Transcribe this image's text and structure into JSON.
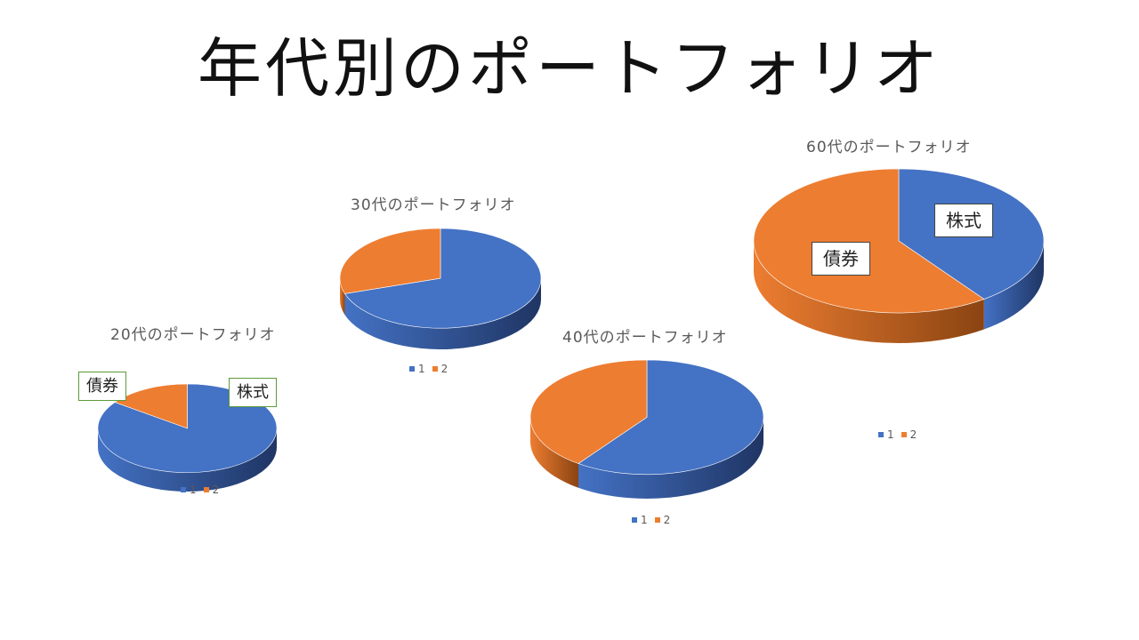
{
  "slide": {
    "title": "年代別のポートフォリオ"
  },
  "colors": {
    "series1": "#4472c4",
    "series2": "#ed7d31"
  },
  "chart_data": [
    {
      "id": "c20",
      "type": "pie",
      "title": "20代のポートフォリオ",
      "categories": [
        "1",
        "2"
      ],
      "values": [
        85,
        15
      ],
      "labels": {
        "stocks": "株式",
        "bonds": "債券"
      },
      "legend": "bottom"
    },
    {
      "id": "c30",
      "type": "pie",
      "title": "30代のポートフォリオ",
      "categories": [
        "1",
        "2"
      ],
      "values": [
        70,
        30
      ],
      "legend": "bottom"
    },
    {
      "id": "c40",
      "type": "pie",
      "title": "40代のポートフォリオ",
      "categories": [
        "1",
        "2"
      ],
      "values": [
        60,
        40
      ],
      "legend": "bottom"
    },
    {
      "id": "c60",
      "type": "pie",
      "title": "60代のポートフォリオ",
      "categories": [
        "1",
        "2"
      ],
      "values": [
        40,
        60
      ],
      "labels": {
        "stocks": "株式",
        "bonds": "債券"
      },
      "legend": "bottom"
    }
  ]
}
